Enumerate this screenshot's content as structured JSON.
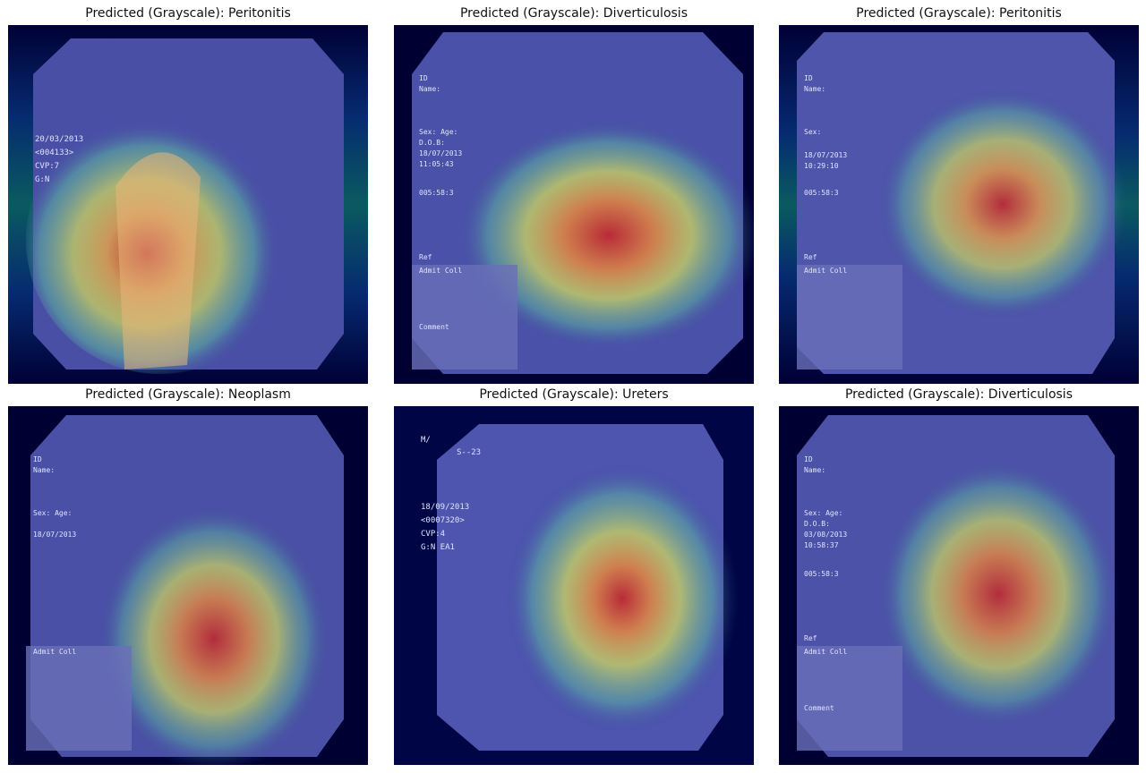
{
  "panels": [
    {
      "title": "Predicted (Grayscale): Peritonitis",
      "overlay": [
        "20/03/2013",
        "<004133>",
        "CVP:7",
        "G:N"
      ]
    },
    {
      "title": "Predicted (Grayscale): Diverticulosis",
      "overlay": [
        "ID",
        "Name:",
        "Sex: Age:",
        "D.O.B:",
        "18/07/2013",
        "11:05:43",
        "005:58:3",
        "Ref",
        "Admit Coll",
        "Comment"
      ]
    },
    {
      "title": "Predicted (Grayscale): Peritonitis",
      "overlay": [
        "ID",
        "Name:",
        "Sex:",
        "18/07/2013",
        "10:29:10",
        "005:58:3",
        "Ref",
        "Admit Coll"
      ]
    },
    {
      "title": "Predicted (Grayscale): Neoplasm",
      "overlay": [
        "ID",
        "Name:",
        "Sex: Age:",
        "18/07/2013",
        "Admit Coll"
      ]
    },
    {
      "title": "Predicted (Grayscale): Ureters",
      "overlay": [
        "M/",
        "S--23",
        "18/09/2013",
        "<0007320>",
        "CVP:4",
        "G:N EA1"
      ]
    },
    {
      "title": "Predicted (Grayscale): Diverticulosis",
      "overlay": [
        "ID",
        "Name:",
        "Sex: Age:",
        "D.O.B:",
        "03/08/2013",
        "10:58:37",
        "005:58:3",
        "Ref",
        "Admit Coll",
        "Comment"
      ]
    }
  ],
  "colors": {
    "background": "#000033",
    "tissue_blue": "#5a5fb0",
    "heat_green": "#7fd873",
    "heat_yellow": "#f2e35a",
    "heat_red": "#c5262a"
  }
}
